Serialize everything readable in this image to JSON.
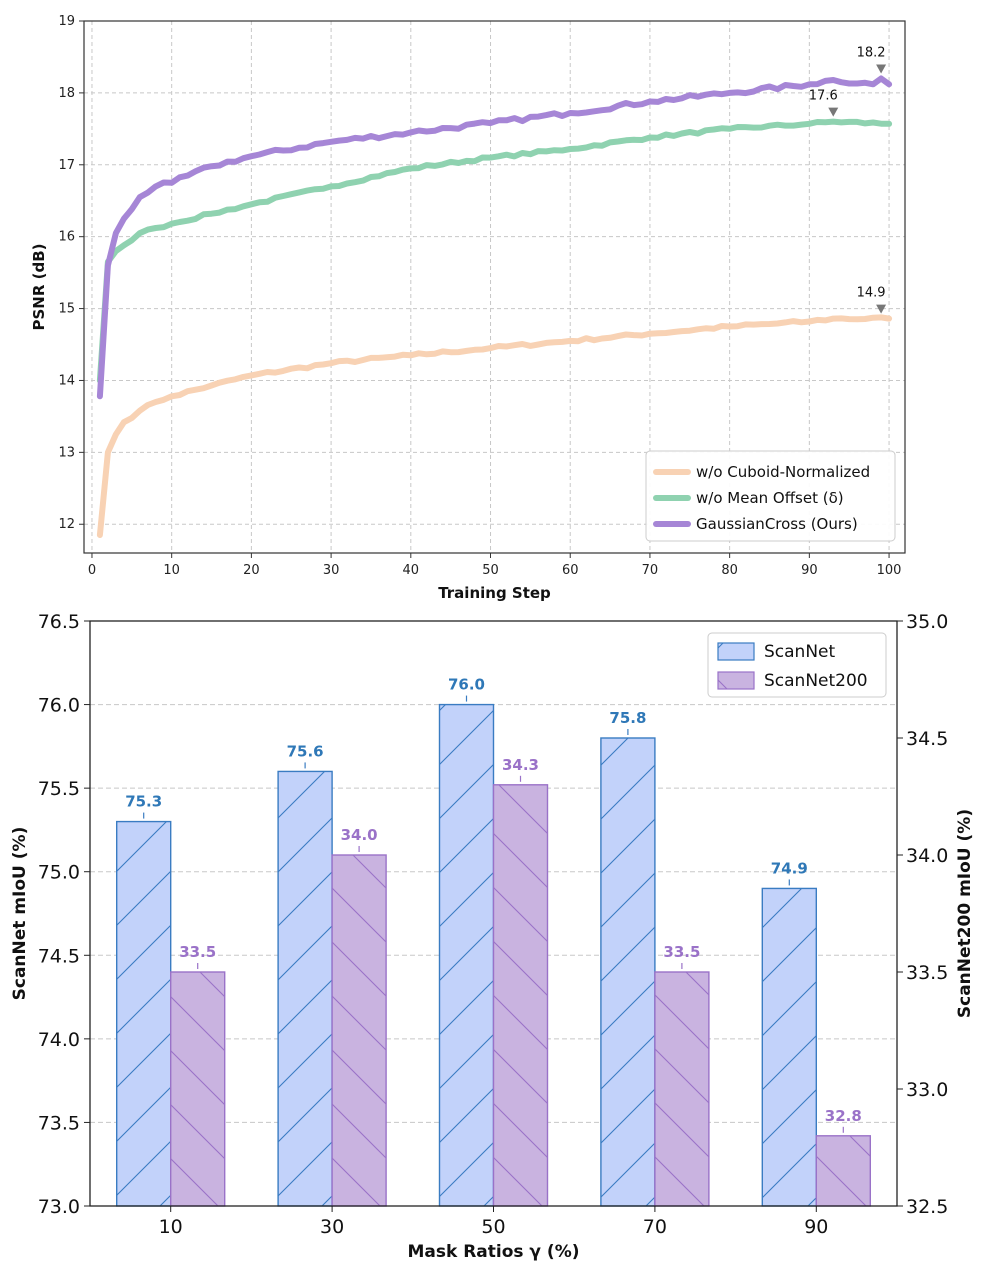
{
  "chart_data": [
    {
      "type": "line",
      "title": "",
      "xlabel": "Training Step",
      "ylabel": "PSNR (dB)",
      "xlim": [
        -1,
        102
      ],
      "ylim": [
        11.6,
        19
      ],
      "xticks": [
        0,
        10,
        20,
        30,
        40,
        50,
        60,
        70,
        80,
        90,
        100
      ],
      "yticks": [
        12,
        13,
        14,
        15,
        16,
        17,
        18,
        19
      ],
      "grid": true,
      "legend_position": "lower-right",
      "series": [
        {
          "name": "w/o Cuboid-Normalized",
          "color": "#f8d2b4",
          "anchors": [
            [
              1,
              11.85
            ],
            [
              2,
              13.0
            ],
            [
              3,
              13.25
            ],
            [
              4,
              13.42
            ],
            [
              6,
              13.58
            ],
            [
              8,
              13.7
            ],
            [
              10,
              13.78
            ],
            [
              15,
              13.93
            ],
            [
              20,
              14.07
            ],
            [
              30,
              14.24
            ],
            [
              40,
              14.35
            ],
            [
              50,
              14.45
            ],
            [
              60,
              14.55
            ],
            [
              70,
              14.65
            ],
            [
              80,
              14.75
            ],
            [
              90,
              14.82
            ],
            [
              93,
              14.86
            ],
            [
              100,
              14.86
            ]
          ]
        },
        {
          "name": "w/o Mean Offset (δ)",
          "color": "#8fd2b0",
          "anchors": [
            [
              1,
              14.0
            ],
            [
              2,
              15.65
            ],
            [
              3,
              15.8
            ],
            [
              4,
              15.88
            ],
            [
              6,
              16.05
            ],
            [
              8,
              16.12
            ],
            [
              10,
              16.18
            ],
            [
              15,
              16.32
            ],
            [
              20,
              16.45
            ],
            [
              30,
              16.7
            ],
            [
              40,
              16.95
            ],
            [
              50,
              17.1
            ],
            [
              60,
              17.22
            ],
            [
              70,
              17.38
            ],
            [
              80,
              17.5
            ],
            [
              90,
              17.57
            ],
            [
              93,
              17.6
            ],
            [
              100,
              17.57
            ]
          ]
        },
        {
          "name": "GaussianCross (Ours)",
          "color": "#a686d6",
          "anchors": [
            [
              1,
              13.78
            ],
            [
              2,
              15.6
            ],
            [
              3,
              16.05
            ],
            [
              4,
              16.25
            ],
            [
              6,
              16.55
            ],
            [
              8,
              16.7
            ],
            [
              10,
              16.75
            ],
            [
              15,
              16.98
            ],
            [
              20,
              17.12
            ],
            [
              30,
              17.32
            ],
            [
              40,
              17.45
            ],
            [
              50,
              17.58
            ],
            [
              60,
              17.72
            ],
            [
              70,
              17.88
            ],
            [
              80,
              18.0
            ],
            [
              90,
              18.12
            ],
            [
              93,
              18.18
            ],
            [
              98,
              18.12
            ],
            [
              99,
              18.2
            ],
            [
              100,
              18.12
            ]
          ]
        }
      ],
      "annotations": [
        {
          "text": "18.2",
          "x": 99,
          "y": 18.2,
          "series": 2
        },
        {
          "text": "17.6",
          "x": 93,
          "y": 17.6,
          "series": 1
        },
        {
          "text": "14.9",
          "x": 99,
          "y": 14.86,
          "series": 0
        }
      ]
    },
    {
      "type": "bar",
      "title": "",
      "xlabel": "Mask Ratios γ (%)",
      "ylabel_left": "ScanNet mIoU (%)",
      "ylabel_right": "ScanNet200 mIoU (%)",
      "categories": [
        "10",
        "30",
        "50",
        "70",
        "90"
      ],
      "ylim_left": [
        73.0,
        76.5
      ],
      "ylim_right": [
        32.5,
        35.0
      ],
      "yticks_left": [
        "73.0",
        "73.5",
        "74.0",
        "74.5",
        "75.0",
        "75.5",
        "76.0",
        "76.5"
      ],
      "yticks_right": [
        "32.5",
        "33.0",
        "33.5",
        "34.0",
        "34.5",
        "35.0"
      ],
      "grid": true,
      "legend_position": "top-right",
      "series": [
        {
          "name": "ScanNet",
          "axis": "left",
          "values": [
            75.3,
            75.6,
            76.0,
            75.8,
            74.9
          ],
          "labels": [
            "75.3",
            "75.6",
            "76.0",
            "75.8",
            "74.9"
          ],
          "color": "#c2d2fa",
          "edge": "#3a7cc2",
          "label_color": "#2f78b7"
        },
        {
          "name": "ScanNet200",
          "axis": "right",
          "values": [
            33.5,
            34.0,
            34.3,
            33.5,
            32.8
          ],
          "labels": [
            "33.5",
            "34.0",
            "34.3",
            "33.5",
            "32.8"
          ],
          "color": "#c9b3e0",
          "edge": "#9a72c8",
          "label_color": "#9a72c8"
        }
      ]
    }
  ]
}
